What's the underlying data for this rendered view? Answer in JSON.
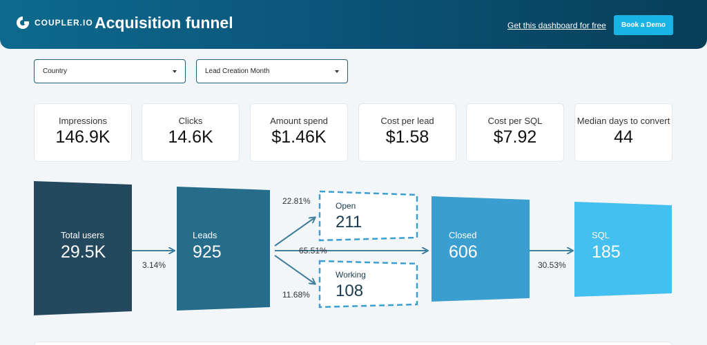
{
  "header": {
    "logo_text": "COUPLER.IO",
    "title": "Acquisition funnel",
    "free_link": "Get this dashboard for free",
    "demo_button": "Book a Demo"
  },
  "filters": {
    "country": "Country",
    "lead_month": "Lead Creation Month"
  },
  "kpis": {
    "impressions": {
      "label": "Impressions",
      "value": "146.9K"
    },
    "clicks": {
      "label": "Clicks",
      "value": "14.6K"
    },
    "spend": {
      "label": "Amount spend",
      "value": "$1.46K"
    },
    "cpl": {
      "label": "Cost per lead",
      "value": "$1.58"
    },
    "cpsql": {
      "label": "Cost per SQL",
      "value": "$7.92"
    },
    "median": {
      "label": "Median days to convert",
      "value": "44"
    }
  },
  "funnel": {
    "total_users": {
      "label": "Total users",
      "value": "29.5K"
    },
    "leads": {
      "label": "Leads",
      "value": "925"
    },
    "open": {
      "label": "Open",
      "value": "211"
    },
    "working": {
      "label": "Working",
      "value": "108"
    },
    "closed": {
      "label": "Closed",
      "value": "606"
    },
    "sql": {
      "label": "SQL",
      "value": "185"
    },
    "pct_users_leads": "3.14%",
    "pct_open": "22.81%",
    "pct_closed": "65.51%",
    "pct_working": "11.68%",
    "pct_sql": "30.53%"
  },
  "colors": {
    "total_users": "#24485e",
    "leads": "#266d8c",
    "closed": "#3a9fd0",
    "sql": "#44c0f0",
    "accent": "#19b4e6"
  }
}
